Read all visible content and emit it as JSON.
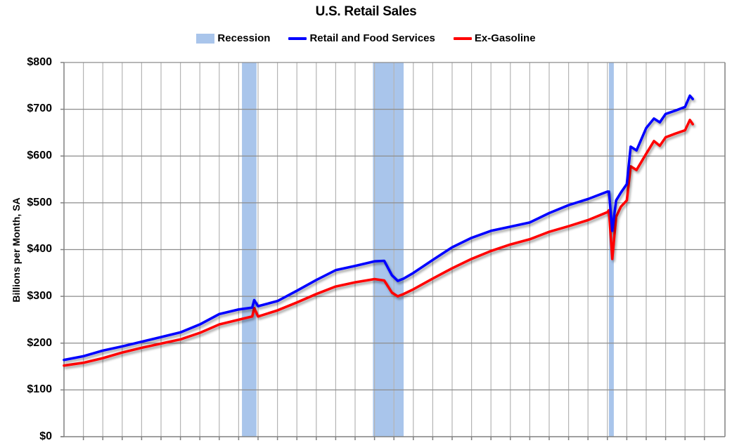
{
  "chart_data": {
    "type": "line",
    "title": "U.S. Retail Sales",
    "xlabel": "",
    "ylabel": "Billions per Month, SA",
    "ylim": [
      0,
      800
    ],
    "yticks": [
      "$0",
      "$100",
      "$200",
      "$300",
      "$400",
      "$500",
      "$600",
      "$700",
      "$800"
    ],
    "xlim": [
      1992.0,
      2024.4
    ],
    "x_tick_labels_visible": false,
    "grid": true,
    "legend_position": "top",
    "legend": [
      {
        "label": "Recession",
        "type": "band",
        "color": "#a9c5eb"
      },
      {
        "label": "Retail and Food Services",
        "type": "line",
        "color": "#0000ff"
      },
      {
        "label": "Ex-Gasoline",
        "type": "line",
        "color": "#ff0000"
      }
    ],
    "recessions": [
      {
        "start": 2001.17,
        "end": 2001.92
      },
      {
        "start": 2007.92,
        "end": 2009.5
      },
      {
        "start": 2020.08,
        "end": 2020.33
      }
    ],
    "x": [
      1992.0,
      1993.0,
      1994.0,
      1995.0,
      1996.0,
      1997.0,
      1998.0,
      1999.0,
      2000.0,
      2001.0,
      2001.7,
      2001.8,
      2002.0,
      2003.0,
      2004.0,
      2005.0,
      2006.0,
      2007.0,
      2008.0,
      2008.5,
      2008.9,
      2009.2,
      2009.5,
      2010.0,
      2011.0,
      2012.0,
      2013.0,
      2014.0,
      2015.0,
      2016.0,
      2017.0,
      2018.0,
      2019.0,
      2020.0,
      2020.08,
      2020.25,
      2020.45,
      2020.7,
      2021.0,
      2021.2,
      2021.5,
      2022.0,
      2022.4,
      2022.7,
      2023.0,
      2023.5,
      2024.0,
      2024.25,
      2024.4
    ],
    "series": [
      {
        "name": "Retail and Food Services",
        "color": "#0000ff",
        "values": [
          164,
          172,
          184,
          193,
          203,
          213,
          223,
          240,
          262,
          272,
          276,
          292,
          279,
          290,
          312,
          335,
          356,
          365,
          375,
          376,
          345,
          333,
          338,
          350,
          378,
          405,
          425,
          440,
          449,
          458,
          478,
          495,
          508,
          524,
          524,
          440,
          505,
          522,
          540,
          620,
          612,
          660,
          680,
          672,
          690,
          697,
          705,
          729,
          722
        ]
      },
      {
        "name": "Ex-Gasoline",
        "color": "#ff0000",
        "values": [
          152,
          158,
          168,
          180,
          190,
          199,
          208,
          222,
          240,
          250,
          257,
          275,
          257,
          270,
          287,
          305,
          321,
          330,
          337,
          334,
          308,
          300,
          305,
          315,
          338,
          360,
          380,
          397,
          411,
          422,
          438,
          450,
          463,
          480,
          484,
          380,
          470,
          492,
          505,
          578,
          570,
          605,
          632,
          622,
          640,
          648,
          655,
          677,
          668
        ]
      }
    ]
  }
}
